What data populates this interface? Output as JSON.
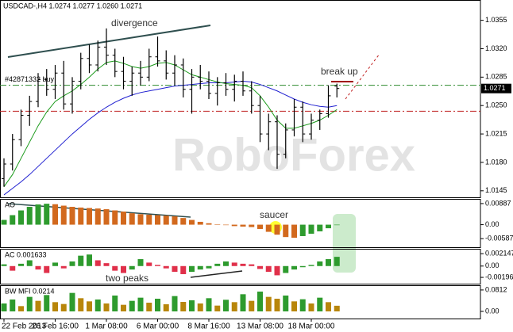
{
  "chart_data": [
    {
      "type": "ohlc",
      "title": "USDCAD-,H4 1.0274 1.0277 1.0260 1.0271",
      "last_price": 1.0271,
      "watermark": "RoboForex",
      "annotations": [
        "divergence",
        "break up"
      ],
      "categories": [
        "22 Feb 2013",
        null,
        null,
        null,
        null,
        null,
        "26 Feb 16:00",
        null,
        null,
        null,
        null,
        null,
        "1 Mar 08:00",
        null,
        null,
        null,
        null,
        null,
        "6 Mar 00:00",
        null,
        null,
        null,
        null,
        null,
        "8 Mar 16:00",
        null,
        null,
        null,
        null,
        null,
        "13 Mar 08:00",
        null,
        null,
        null,
        null,
        null,
        "18 Mar 00:00",
        null,
        null,
        null
      ],
      "open": [
        1.016,
        1.0178,
        1.0208,
        1.0238,
        1.0255,
        1.0282,
        1.027,
        1.029,
        1.0252,
        1.028,
        1.0308,
        1.03,
        1.0322,
        1.0312,
        1.0292,
        1.028,
        1.029,
        1.0285,
        1.031,
        1.0305,
        1.029,
        1.03,
        1.027,
        1.0285,
        1.028,
        1.0265,
        1.0278,
        1.027,
        1.028,
        1.0268,
        1.025,
        1.0215,
        1.023,
        1.019,
        1.022,
        1.0248,
        1.0215,
        1.0232,
        1.024,
        1.0274
      ],
      "high": [
        1.0185,
        1.0215,
        1.0245,
        1.0262,
        1.029,
        1.0295,
        1.03,
        1.0305,
        1.0285,
        1.0315,
        1.0325,
        1.033,
        1.0345,
        1.032,
        1.031,
        1.0298,
        1.0305,
        1.032,
        1.0335,
        1.0318,
        1.0312,
        1.0308,
        1.0295,
        1.03,
        1.0292,
        1.0285,
        1.029,
        1.0288,
        1.0292,
        1.028,
        1.0262,
        1.024,
        1.0238,
        1.0228,
        1.0258,
        1.0255,
        1.024,
        1.0245,
        1.0275,
        1.0277
      ],
      "low": [
        1.015,
        1.017,
        1.02,
        1.0225,
        1.0248,
        1.0262,
        1.0258,
        1.0245,
        1.024,
        1.027,
        1.029,
        1.0292,
        1.03,
        1.0285,
        1.027,
        1.0262,
        1.0275,
        1.028,
        1.0298,
        1.0282,
        1.0275,
        1.026,
        1.024,
        1.027,
        1.0258,
        1.025,
        1.0262,
        1.0255,
        1.0262,
        1.024,
        1.0205,
        1.0195,
        1.0172,
        1.0185,
        1.0212,
        1.0205,
        1.0208,
        1.022,
        1.0235,
        1.026
      ],
      "close": [
        1.0178,
        1.0208,
        1.0238,
        1.0255,
        1.0282,
        1.027,
        1.029,
        1.0252,
        1.028,
        1.0308,
        1.03,
        1.0322,
        1.0312,
        1.0292,
        1.028,
        1.029,
        1.0285,
        1.031,
        1.0305,
        1.029,
        1.03,
        1.027,
        1.0285,
        1.028,
        1.0265,
        1.0278,
        1.027,
        1.028,
        1.0268,
        1.025,
        1.0215,
        1.023,
        1.019,
        1.022,
        1.0248,
        1.0215,
        1.0232,
        1.024,
        1.0262,
        1.0271
      ],
      "lines": [
        {
          "color": "#1f1fd0",
          "values": [
            1.014,
            1.0148,
            1.0156,
            1.0165,
            1.0175,
            1.0185,
            1.0195,
            1.0205,
            1.0215,
            1.0224,
            1.0233,
            1.0241,
            1.0248,
            1.0254,
            1.0259,
            1.0263,
            1.0266,
            1.0268,
            1.027,
            1.0272,
            1.0274,
            1.0275,
            1.0276,
            1.0277,
            1.0278,
            1.0278,
            1.0278,
            1.0279,
            1.028,
            1.0279,
            1.0276,
            1.0272,
            1.0268,
            1.0263,
            1.0258,
            1.0254,
            1.0251,
            1.0249,
            1.0248,
            1.025
          ]
        },
        {
          "color": "#1a9a1a",
          "values": [
            1.015,
            1.0165,
            1.0185,
            1.0205,
            1.0225,
            1.0242,
            1.0255,
            1.0262,
            1.0268,
            1.0276,
            1.0285,
            1.0295,
            1.0303,
            1.0305,
            1.0302,
            1.0298,
            1.0296,
            1.0298,
            1.0302,
            1.0303,
            1.03,
            1.0294,
            1.0288,
            1.0285,
            1.0282,
            1.0279,
            1.0277,
            1.0276,
            1.0275,
            1.0272,
            1.0262,
            1.0248,
            1.0232,
            1.0222,
            1.0222,
            1.0225,
            1.0228,
            1.0232,
            1.0238,
            1.0245
          ]
        }
      ],
      "levels": [
        {
          "value": 1.0275,
          "color": "#2e8b2e",
          "label": "#42871332 buy"
        },
        {
          "value": 1.0243,
          "color": "#c02020"
        }
      ],
      "ylim": [
        1.0137,
        1.038
      ],
      "yticks": [
        1.0355,
        {
          "value": 1.032,
          "label": "1.0320"
        },
        1.0285,
        {
          "value": 1.025,
          "label": "1.0250"
        },
        1.0215,
        {
          "value": 1.018,
          "label": "1.0180"
        },
        1.0145
      ]
    },
    {
      "type": "bar",
      "label": "AO",
      "annotations": [
        "saucer"
      ],
      "up_color": "#2e9b2e",
      "down_color": "#d2691e",
      "values": [
        0.002,
        0.004,
        0.006,
        0.0075,
        0.0085,
        0.0088,
        0.0086,
        0.008,
        0.0075,
        0.0072,
        0.007,
        0.0068,
        0.0065,
        0.006,
        0.0055,
        0.0048,
        0.0044,
        0.0042,
        0.004,
        0.0038,
        0.0035,
        0.0028,
        0.002,
        0.0012,
        0.0006,
        0.0002,
        -0.0002,
        -0.0006,
        -0.0008,
        -0.001,
        -0.0018,
        -0.003,
        -0.0042,
        -0.0052,
        -0.0055,
        -0.0048,
        -0.0038,
        -0.0028,
        -0.0015,
        -0.0002
      ],
      "ylim": [
        -0.00947,
        0.01084
      ],
      "yticks": [
        0.00887,
        {
          "value": 0,
          "label": "0.00"
        },
        -0.00587
      ]
    },
    {
      "type": "bar",
      "label": "AC 0.001633",
      "annotations": [
        "two peaks"
      ],
      "up_color": "#2e9b2e",
      "down_color": "#e0304a",
      "values": [
        0.0003,
        -0.0008,
        0.0004,
        0.001,
        -0.0006,
        -0.0012,
        0.0006,
        -0.0004,
        0.0008,
        0.0018,
        0.002,
        0.001,
        0.0005,
        -0.0008,
        -0.0012,
        -0.0006,
        0.0012,
        0.0006,
        0.0002,
        -0.0004,
        -0.001,
        -0.0014,
        -0.001,
        -0.0006,
        -0.0004,
        0.0004,
        0.0008,
        0.0006,
        0.0004,
        0.0003,
        -0.0005,
        -0.001,
        -0.0016,
        -0.0012,
        -0.0006,
        -0.0002,
        0.0002,
        0.0008,
        0.0012,
        0.0016
      ],
      "ylim": [
        -0.00305,
        0.00299
      ],
      "yticks": [
        0.002147,
        {
          "value": 0,
          "label": "0.00"
        },
        -0.00196
      ]
    },
    {
      "type": "bar",
      "label": "BW MFI 0.0214",
      "up_color": "#2e9b2e",
      "down_color": "#b8860b",
      "values": [
        0.03,
        0.045,
        0.02,
        0.055,
        0.04,
        0.062,
        0.035,
        0.028,
        0.07,
        0.05,
        0.038,
        0.045,
        0.03,
        0.06,
        0.025,
        0.04,
        0.052,
        0.033,
        0.048,
        0.027,
        0.058,
        0.036,
        0.042,
        0.03,
        0.05,
        0.022,
        0.044,
        0.035,
        0.065,
        0.04,
        0.075,
        0.055,
        0.048,
        0.06,
        0.038,
        0.046,
        0.03,
        0.052,
        0.035,
        0.0214
      ],
      "ylim": [
        -0.027,
        0.099
      ],
      "yticks": [
        0.0812,
        {
          "value": 0,
          "label": "0.00"
        }
      ]
    }
  ]
}
